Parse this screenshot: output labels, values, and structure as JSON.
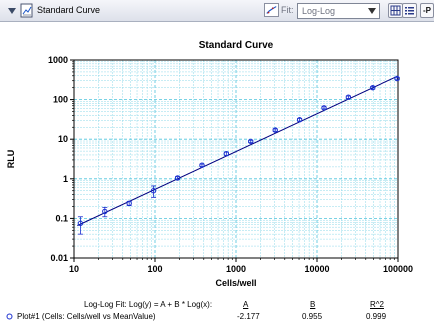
{
  "toolbar": {
    "title": "Standard Curve",
    "fit_label": "Fit:",
    "fit_value": "Log-Log",
    "p_button_label": "-P",
    "icons": {
      "collapse": "triangle-down-icon",
      "document": "chart-document-icon",
      "fit": "curve-fit-icon",
      "grid": "grid-view-icon",
      "list": "list-view-icon"
    }
  },
  "chart_data": {
    "type": "scatter",
    "title": "Standard Curve",
    "xlabel": "Cells/well",
    "ylabel": "RLU",
    "x_scale": "log",
    "y_scale": "log",
    "xlim": [
      10,
      100000
    ],
    "ylim": [
      0.01,
      1000
    ],
    "x_ticks": [
      "10",
      "100",
      "1000",
      "10000",
      "100000"
    ],
    "y_ticks": [
      "1000",
      "100",
      "10",
      "1",
      "0.1",
      "0.01"
    ],
    "grid": true,
    "series": [
      {
        "color": "#1a2fd0",
        "marker": "open-circle",
        "x": [
          12,
          24,
          48,
          96,
          190,
          380,
          760,
          1520,
          3050,
          6100,
          12200,
          24400,
          48800,
          97600
        ],
        "y": [
          0.075,
          0.15,
          0.24,
          0.5,
          1.05,
          2.2,
          4.3,
          8.8,
          17,
          31,
          62,
          115,
          200,
          340
        ],
        "yerr": [
          0.035,
          0.04,
          0.03,
          0.16,
          0.08,
          0.15,
          0.4,
          0.6,
          1.2,
          2.5,
          4,
          8,
          15,
          25
        ]
      }
    ],
    "fit": {
      "label": "Log-Log Fit: Log(y) = A + B * Log(x):",
      "A": -2.177,
      "B": 0.955,
      "color": "#000080"
    }
  },
  "stats": {
    "fit_label": "Log-Log Fit: Log(y) = A + B * Log(x):",
    "col_a": "A",
    "col_b": "B",
    "col_r2": "R^2",
    "plot_label": "Plot#1 (Cells: Cells/well vs MeanValue)",
    "val_a": "-2.177",
    "val_b": "0.955",
    "val_r2": "0.999"
  }
}
